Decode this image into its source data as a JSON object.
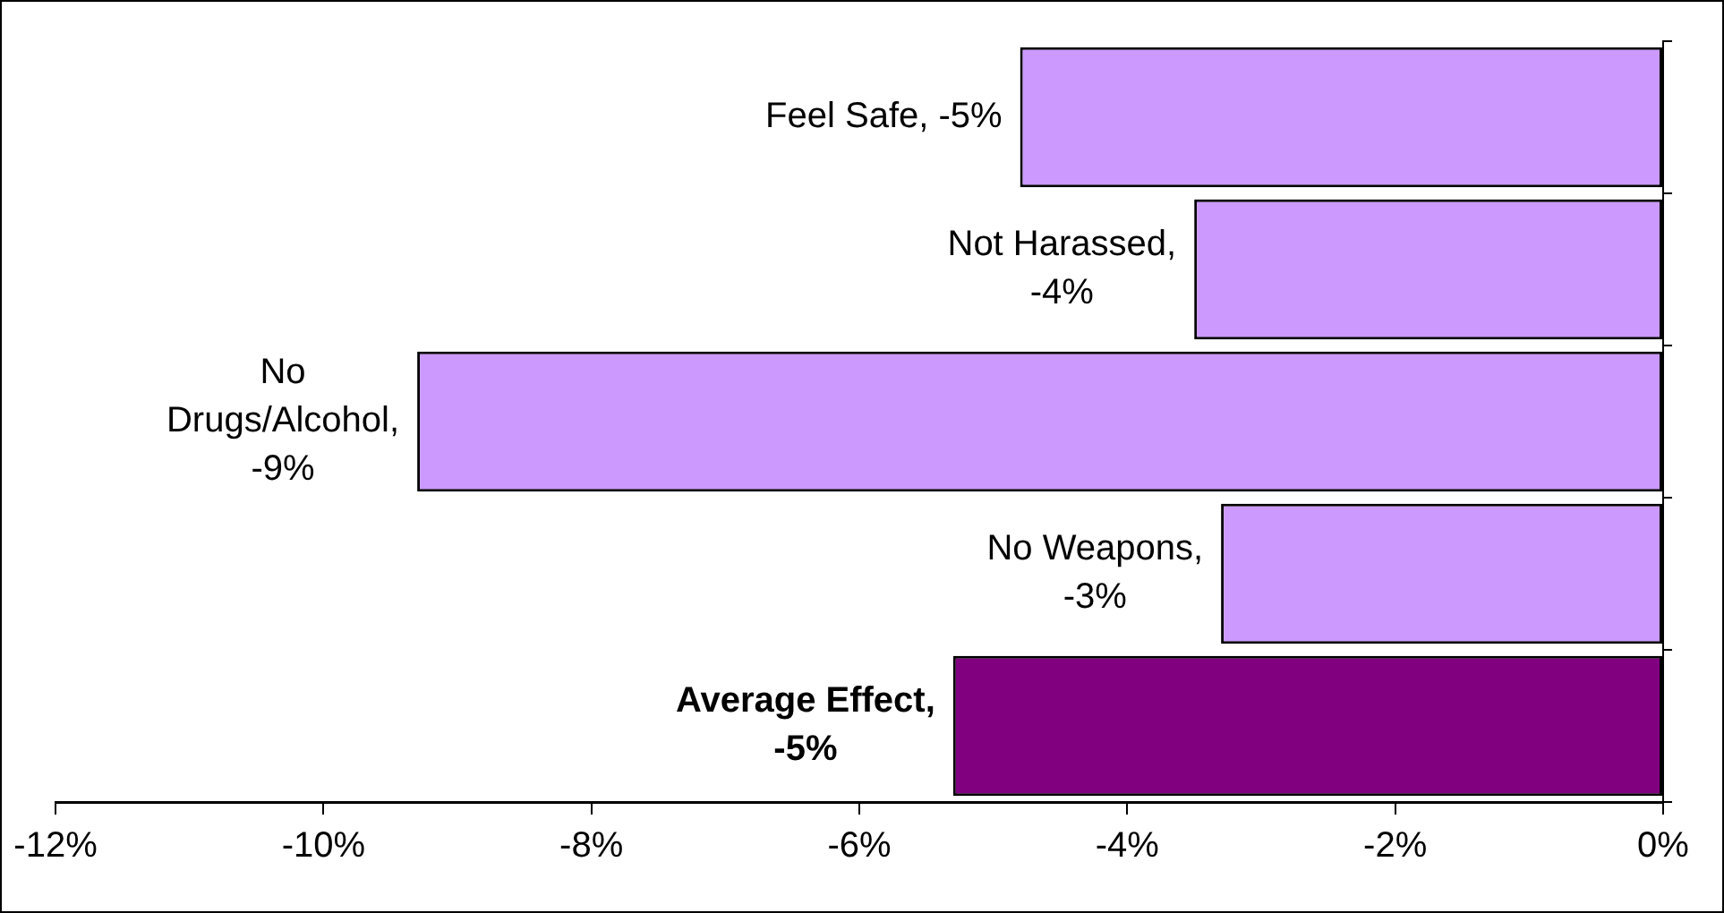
{
  "chart_data": {
    "type": "bar",
    "orientation": "horizontal",
    "categories": [
      null,
      null,
      null,
      null,
      null
    ],
    "values": [
      -4.8,
      -3.5,
      -9.3,
      -3.3,
      -5.3
    ],
    "colors": [
      "#cc99ff",
      "#cc99ff",
      "#cc99ff",
      "#cc99ff",
      "#800080"
    ],
    "value_labels": [
      "Feel Safe, -5%",
      "Not Harassed, -4%",
      "No Drugs/Alcohol, -9%",
      "No Weapons, -3%",
      "Average Effect, -5%"
    ],
    "xlim": [
      -12,
      0
    ],
    "xticks": [
      {
        "value": -12,
        "label": "-12%"
      },
      {
        "value": -10,
        "label": "-10%"
      },
      {
        "value": -8,
        "label": "-8%"
      },
      {
        "value": -6,
        "label": "-6%"
      },
      {
        "value": -4,
        "label": "-4%"
      },
      {
        "value": -2,
        "label": "-2%"
      },
      {
        "value": 0,
        "label": "0%"
      }
    ],
    "grid": false,
    "legend": false
  }
}
